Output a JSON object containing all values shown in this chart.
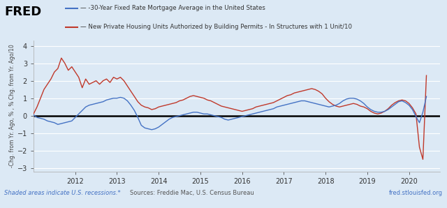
{
  "title_line1": "— -30-Year Fixed Rate Mortgage Average in the United States",
  "title_line2": "— New Private Housing Units Authorized by Building Permits - In Structures with 1 Unit/10",
  "ylabel": "-Chg. from Yr. Ago, % , % Chg. from Yr. Ago/10",
  "ylim": [
    -3.2,
    4.3
  ],
  "yticks": [
    -3,
    -2,
    -1,
    0,
    1,
    2,
    3,
    4
  ],
  "xlim_start": 2011.0,
  "xlim_end": 2020.75,
  "xtick_years": [
    2012,
    2013,
    2014,
    2015,
    2016,
    2017,
    2018,
    2019,
    2020
  ],
  "background_color": "#dce9f5",
  "blue_color": "#4472c4",
  "red_color": "#c0392b",
  "fred_text_color": "#4472c4",
  "footer_left": "Shaded areas indicate U.S. recessions.*",
  "footer_center": "Sources: Freddie Mac, U.S. Census Bureau",
  "footer_right": "fred.stlouisfed.org",
  "blue_series": {
    "dates": [
      2011.0,
      2011.083,
      2011.167,
      2011.25,
      2011.333,
      2011.417,
      2011.5,
      2011.583,
      2011.667,
      2011.75,
      2011.833,
      2011.917,
      2012.0,
      2012.083,
      2012.167,
      2012.25,
      2012.333,
      2012.417,
      2012.5,
      2012.583,
      2012.667,
      2012.75,
      2012.833,
      2012.917,
      2013.0,
      2013.083,
      2013.167,
      2013.25,
      2013.333,
      2013.417,
      2013.5,
      2013.583,
      2013.667,
      2013.75,
      2013.833,
      2013.917,
      2014.0,
      2014.083,
      2014.167,
      2014.25,
      2014.333,
      2014.417,
      2014.5,
      2014.583,
      2014.667,
      2014.75,
      2014.833,
      2014.917,
      2015.0,
      2015.083,
      2015.167,
      2015.25,
      2015.333,
      2015.417,
      2015.5,
      2015.583,
      2015.667,
      2015.75,
      2015.833,
      2015.917,
      2016.0,
      2016.083,
      2016.167,
      2016.25,
      2016.333,
      2016.417,
      2016.5,
      2016.583,
      2016.667,
      2016.75,
      2016.833,
      2016.917,
      2017.0,
      2017.083,
      2017.167,
      2017.25,
      2017.333,
      2017.417,
      2017.5,
      2017.583,
      2017.667,
      2017.75,
      2017.833,
      2017.917,
      2018.0,
      2018.083,
      2018.167,
      2018.25,
      2018.333,
      2018.417,
      2018.5,
      2018.583,
      2018.667,
      2018.75,
      2018.833,
      2018.917,
      2019.0,
      2019.083,
      2019.167,
      2019.25,
      2019.333,
      2019.417,
      2019.5,
      2019.583,
      2019.667,
      2019.75,
      2019.833,
      2019.917,
      2020.0,
      2020.083,
      2020.167,
      2020.25,
      2020.333,
      2020.417
    ],
    "values": [
      0.05,
      -0.1,
      -0.15,
      -0.2,
      -0.3,
      -0.35,
      -0.4,
      -0.5,
      -0.45,
      -0.4,
      -0.35,
      -0.3,
      -0.1,
      0.1,
      0.3,
      0.5,
      0.6,
      0.65,
      0.7,
      0.75,
      0.8,
      0.9,
      0.95,
      1.0,
      1.0,
      1.05,
      1.0,
      0.85,
      0.6,
      0.3,
      -0.1,
      -0.55,
      -0.7,
      -0.75,
      -0.8,
      -0.75,
      -0.65,
      -0.5,
      -0.35,
      -0.2,
      -0.1,
      -0.05,
      0.0,
      0.05,
      0.1,
      0.15,
      0.2,
      0.2,
      0.15,
      0.1,
      0.1,
      0.05,
      0.0,
      -0.05,
      -0.1,
      -0.2,
      -0.25,
      -0.2,
      -0.15,
      -0.1,
      -0.05,
      0.0,
      0.05,
      0.1,
      0.15,
      0.2,
      0.25,
      0.3,
      0.35,
      0.4,
      0.5,
      0.55,
      0.6,
      0.65,
      0.7,
      0.75,
      0.8,
      0.85,
      0.85,
      0.8,
      0.75,
      0.7,
      0.65,
      0.6,
      0.55,
      0.5,
      0.55,
      0.6,
      0.7,
      0.85,
      0.95,
      1.0,
      1.0,
      0.95,
      0.85,
      0.7,
      0.5,
      0.35,
      0.25,
      0.2,
      0.2,
      0.25,
      0.35,
      0.5,
      0.65,
      0.8,
      0.85,
      0.75,
      0.6,
      0.35,
      -0.05,
      -0.4,
      0.2,
      1.1
    ]
  },
  "red_series": {
    "dates": [
      2011.0,
      2011.083,
      2011.167,
      2011.25,
      2011.333,
      2011.417,
      2011.5,
      2011.583,
      2011.667,
      2011.75,
      2011.833,
      2011.917,
      2012.0,
      2012.083,
      2012.167,
      2012.25,
      2012.333,
      2012.417,
      2012.5,
      2012.583,
      2012.667,
      2012.75,
      2012.833,
      2012.917,
      2013.0,
      2013.083,
      2013.167,
      2013.25,
      2013.333,
      2013.417,
      2013.5,
      2013.583,
      2013.667,
      2013.75,
      2013.833,
      2013.917,
      2014.0,
      2014.083,
      2014.167,
      2014.25,
      2014.333,
      2014.417,
      2014.5,
      2014.583,
      2014.667,
      2014.75,
      2014.833,
      2014.917,
      2015.0,
      2015.083,
      2015.167,
      2015.25,
      2015.333,
      2015.417,
      2015.5,
      2015.583,
      2015.667,
      2015.75,
      2015.833,
      2015.917,
      2016.0,
      2016.083,
      2016.167,
      2016.25,
      2016.333,
      2016.417,
      2016.5,
      2016.583,
      2016.667,
      2016.75,
      2016.833,
      2016.917,
      2017.0,
      2017.083,
      2017.167,
      2017.25,
      2017.333,
      2017.417,
      2017.5,
      2017.583,
      2017.667,
      2017.75,
      2017.833,
      2017.917,
      2018.0,
      2018.083,
      2018.167,
      2018.25,
      2018.333,
      2018.417,
      2018.5,
      2018.583,
      2018.667,
      2018.75,
      2018.833,
      2018.917,
      2019.0,
      2019.083,
      2019.167,
      2019.25,
      2019.333,
      2019.417,
      2019.5,
      2019.583,
      2019.667,
      2019.75,
      2019.833,
      2019.917,
      2020.0,
      2020.083,
      2020.167,
      2020.25,
      2020.333,
      2020.417
    ],
    "values": [
      0.1,
      0.5,
      1.0,
      1.5,
      1.8,
      2.1,
      2.5,
      2.7,
      3.3,
      3.0,
      2.6,
      2.8,
      2.5,
      2.2,
      1.6,
      2.1,
      1.8,
      1.9,
      2.0,
      1.8,
      2.0,
      2.1,
      1.9,
      2.2,
      2.1,
      2.2,
      2.0,
      1.7,
      1.4,
      1.1,
      0.8,
      0.6,
      0.5,
      0.45,
      0.35,
      0.4,
      0.5,
      0.55,
      0.6,
      0.65,
      0.7,
      0.75,
      0.85,
      0.9,
      1.0,
      1.1,
      1.15,
      1.1,
      1.05,
      1.0,
      0.9,
      0.85,
      0.75,
      0.65,
      0.55,
      0.5,
      0.45,
      0.4,
      0.35,
      0.3,
      0.25,
      0.3,
      0.35,
      0.4,
      0.5,
      0.55,
      0.6,
      0.65,
      0.7,
      0.75,
      0.85,
      0.95,
      1.05,
      1.15,
      1.2,
      1.3,
      1.35,
      1.4,
      1.45,
      1.5,
      1.55,
      1.5,
      1.4,
      1.25,
      1.0,
      0.8,
      0.65,
      0.55,
      0.5,
      0.55,
      0.6,
      0.65,
      0.7,
      0.65,
      0.55,
      0.5,
      0.4,
      0.25,
      0.15,
      0.1,
      0.15,
      0.25,
      0.4,
      0.6,
      0.75,
      0.85,
      0.9,
      0.85,
      0.7,
      0.45,
      0.1,
      -1.8,
      -2.5,
      2.3
    ]
  }
}
